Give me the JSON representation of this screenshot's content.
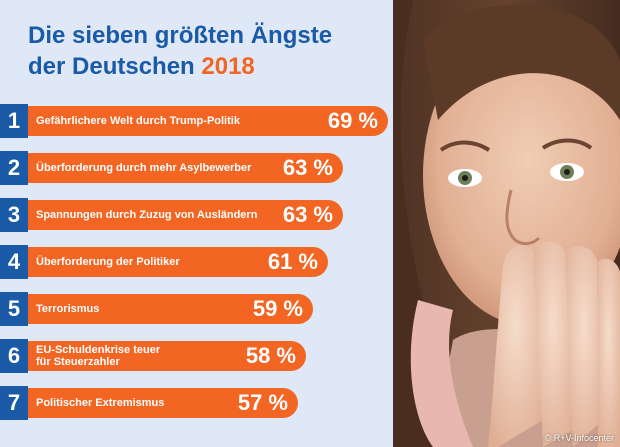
{
  "chart_data": {
    "type": "bar",
    "orientation": "horizontal",
    "title_line1": "Die sieben größten Ängste",
    "title_line2": "der Deutschen",
    "title_year": "2018",
    "items": [
      {
        "rank": "1",
        "label": "Gefährlichere Welt durch Trump-Politik",
        "value": 69,
        "value_label": "69 %"
      },
      {
        "rank": "2",
        "label": "Überforderung durch mehr Asylbewerber",
        "value": 63,
        "value_label": "63 %"
      },
      {
        "rank": "3",
        "label": "Spannungen durch Zuzug von Ausländern",
        "value": 63,
        "value_label": "63 %"
      },
      {
        "rank": "4",
        "label": "Überforderung der Politiker",
        "value": 61,
        "value_label": "61 %"
      },
      {
        "rank": "5",
        "label": "Terrorismus",
        "value": 59,
        "value_label": "59 %"
      },
      {
        "rank": "6",
        "label": "EU-Schuldenkrise teuer\nfür Steuerzahler",
        "value": 58,
        "value_label": "58 %"
      },
      {
        "rank": "7",
        "label": "Politischer Extremismus",
        "value": 57,
        "value_label": "57 %"
      }
    ],
    "unit": "%"
  },
  "credit": "© R+V-Infocenter",
  "colors": {
    "bar": "#f26522",
    "rank_box": "#1a5aa6",
    "title": "#1a5aa6",
    "year": "#f26522",
    "panel": "#dfe8f6"
  }
}
